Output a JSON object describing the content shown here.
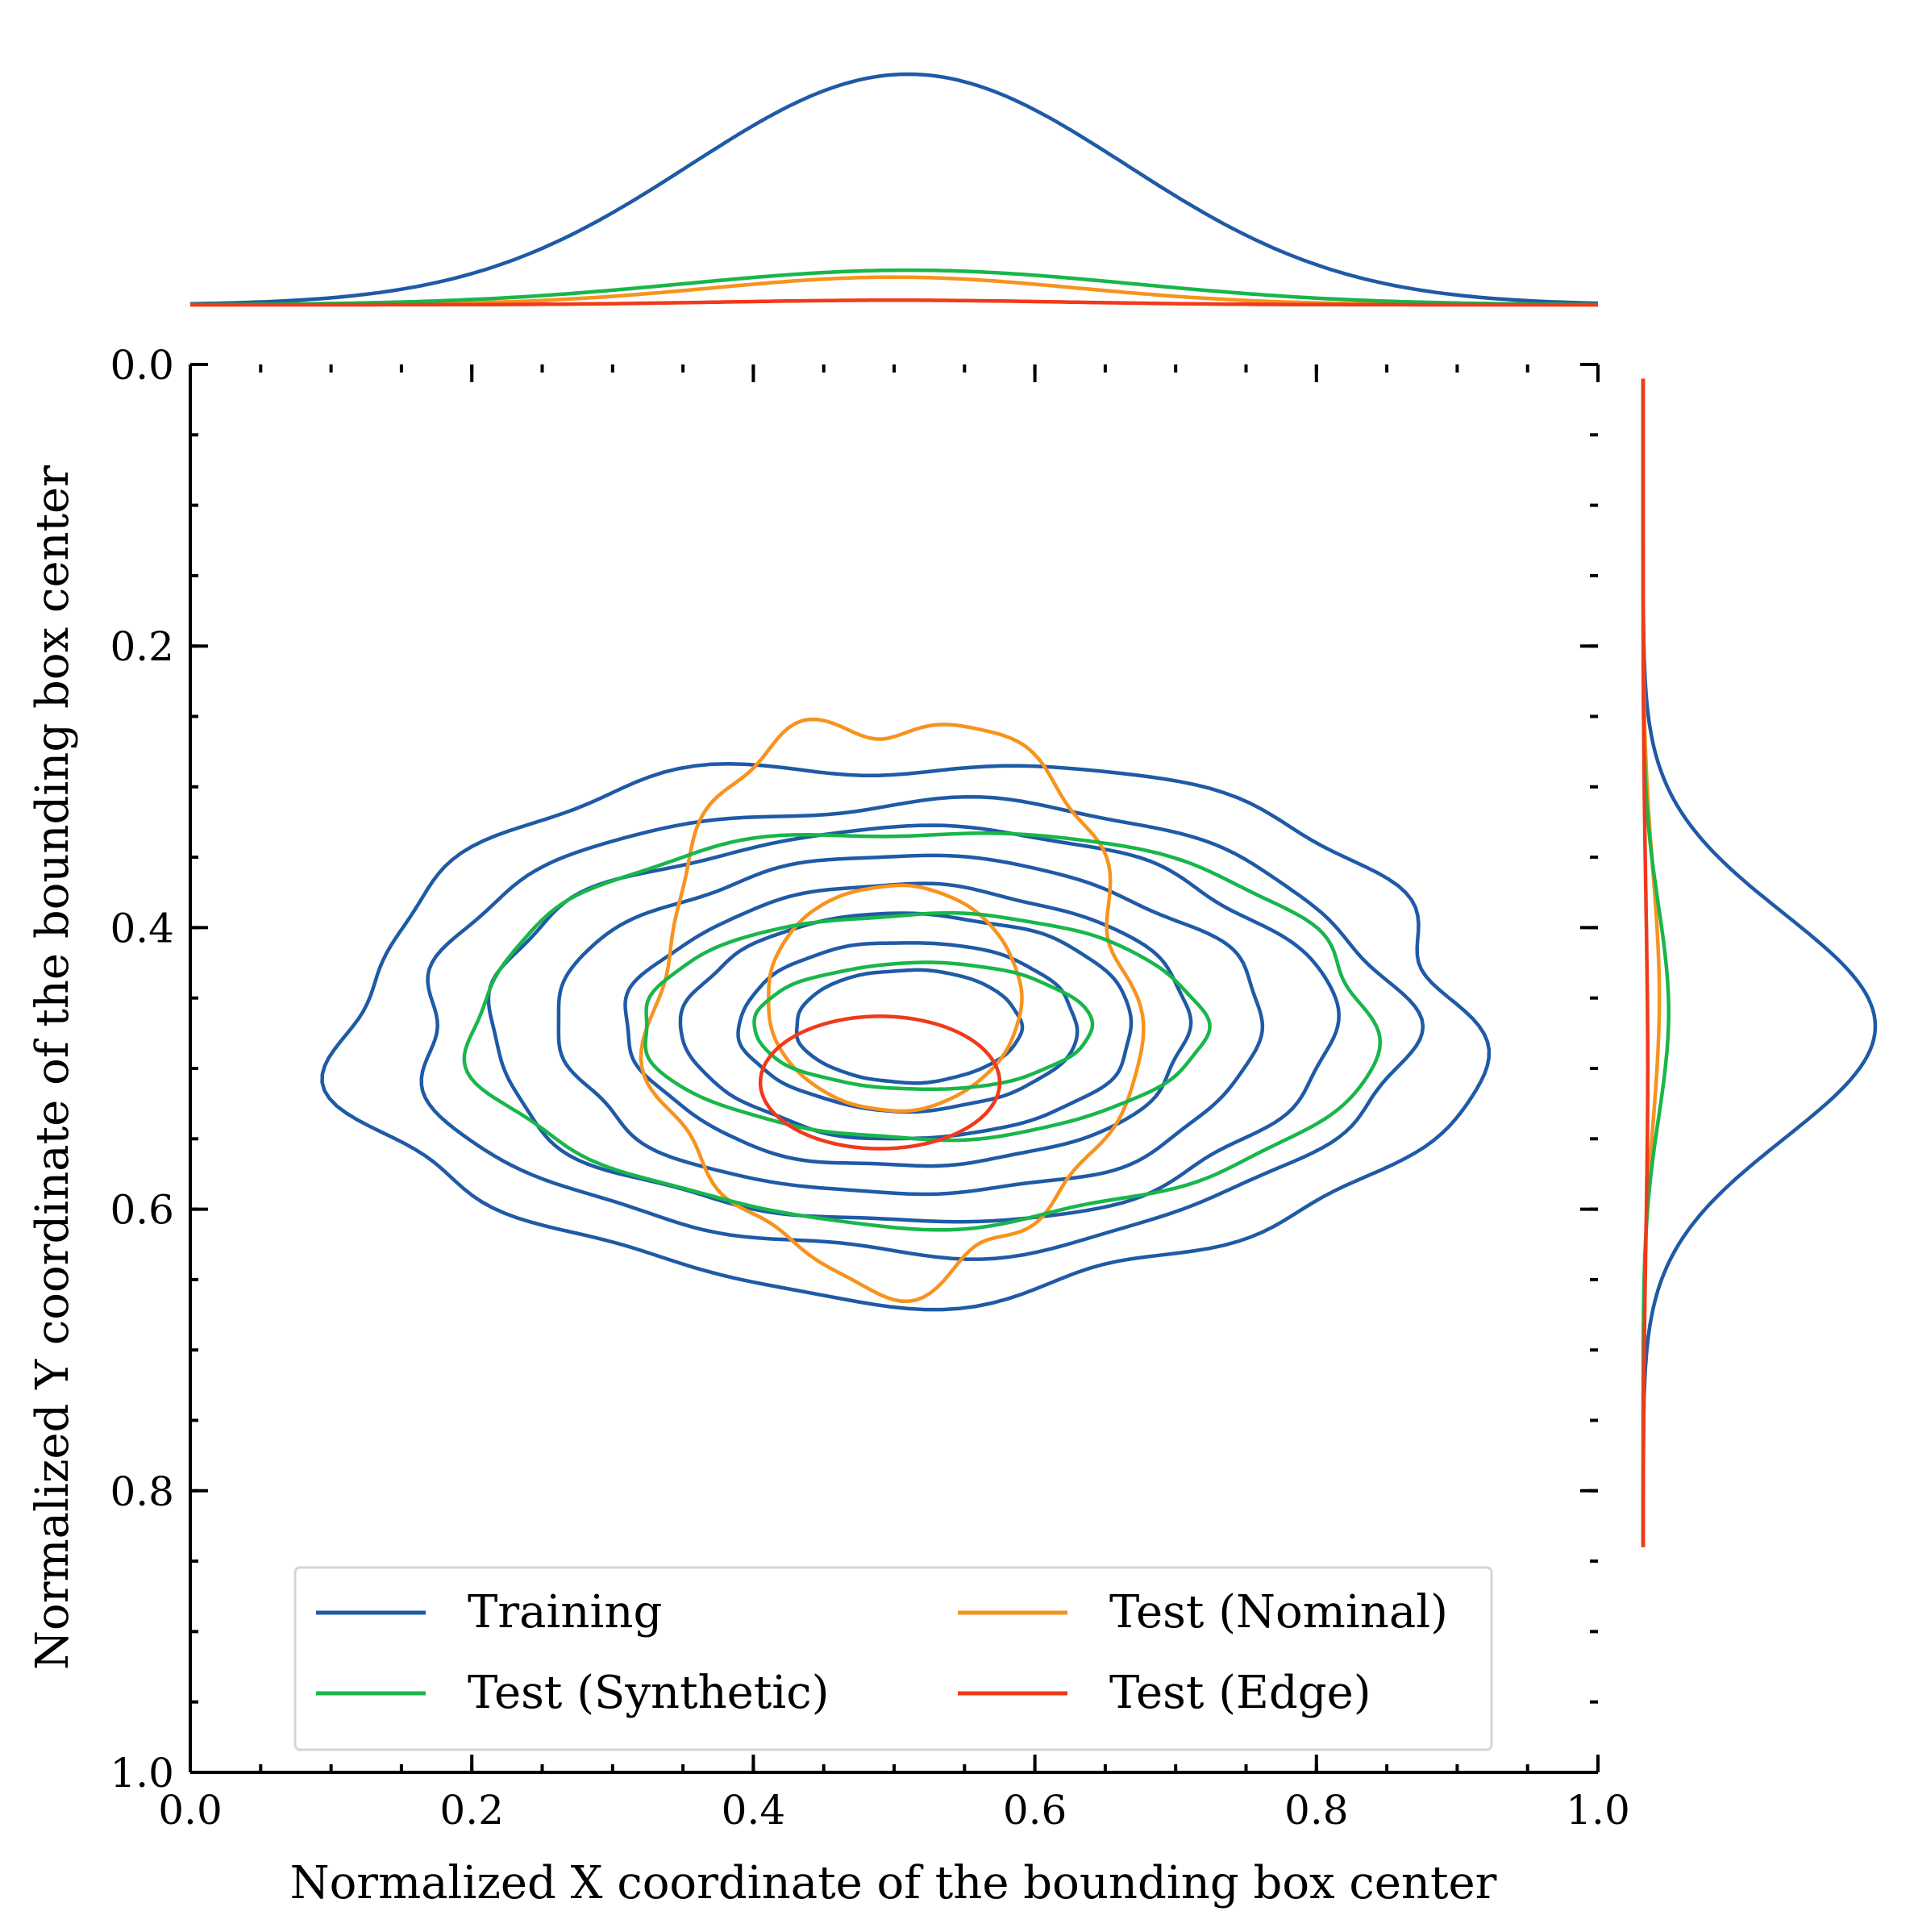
{
  "chart_data": {
    "type": "kde_contour_joint",
    "xlabel": "Normalized X coordinate of the bounding box center",
    "ylabel": "Normalized Y coordinate of the bounding box center",
    "xlim": [
      0.0,
      1.0
    ],
    "ylim": [
      1.0,
      0.0
    ],
    "y_inverted": true,
    "x_ticks": [
      {
        "value": 0.0,
        "label": "0.0"
      },
      {
        "value": 0.2,
        "label": "0.2"
      },
      {
        "value": 0.4,
        "label": "0.4"
      },
      {
        "value": 0.6,
        "label": "0.6"
      },
      {
        "value": 0.8,
        "label": "0.8"
      },
      {
        "value": 1.0,
        "label": "1.0"
      }
    ],
    "y_ticks": [
      {
        "value": 0.0,
        "label": "0.0"
      },
      {
        "value": 0.2,
        "label": "0.2"
      },
      {
        "value": 0.4,
        "label": "0.4"
      },
      {
        "value": 0.6,
        "label": "0.6"
      },
      {
        "value": 0.8,
        "label": "0.8"
      },
      {
        "value": 1.0,
        "label": "1.0"
      }
    ],
    "minor_tick_step": 0.05,
    "legend": {
      "placement": "lower-center",
      "columns": 2,
      "entries": [
        {
          "label": "Training",
          "series": "training"
        },
        {
          "label": "Test (Nominal)",
          "series": "nominal"
        },
        {
          "label": "Test (Synthetic)",
          "series": "synthetic"
        },
        {
          "label": "Test (Edge)",
          "series": "edge"
        }
      ]
    },
    "series": [
      {
        "id": "training",
        "name": "Training",
        "color": "#1f5aa6",
        "center": [
          0.51,
          0.47
        ],
        "contours": [
          {
            "rx": 0.4,
            "ry": 0.19,
            "wobble": 0.035
          },
          {
            "rx": 0.35,
            "ry": 0.16,
            "wobble": 0.025
          },
          {
            "rx": 0.3,
            "ry": 0.14,
            "wobble": 0.02
          },
          {
            "rx": 0.25,
            "ry": 0.12,
            "wobble": 0.018
          },
          {
            "rx": 0.2,
            "ry": 0.1,
            "wobble": 0.015
          },
          {
            "rx": 0.16,
            "ry": 0.08,
            "wobble": 0.012
          },
          {
            "rx": 0.12,
            "ry": 0.06,
            "wobble": 0.01
          },
          {
            "rx": 0.08,
            "ry": 0.04,
            "wobble": 0.008
          }
        ],
        "x_marginal": {
          "mean": 0.51,
          "sd": 0.155,
          "peak": 1.0
        },
        "y_marginal": {
          "mean": 0.47,
          "sd": 0.08,
          "peak": 1.0
        }
      },
      {
        "id": "nominal",
        "name": "Test (Nominal)",
        "color": "#f7931e",
        "center": [
          0.5,
          0.45
        ],
        "contours": [
          {
            "rx": 0.17,
            "ry": 0.2,
            "wobble": 0.045
          },
          {
            "rx": 0.09,
            "ry": 0.08,
            "wobble": 0.005
          }
        ],
        "x_marginal": {
          "mean": 0.5,
          "sd": 0.13,
          "peak": 0.12
        },
        "y_marginal": {
          "mean": 0.45,
          "sd": 0.09,
          "peak": 0.07
        }
      },
      {
        "id": "synthetic",
        "name": "Test (Synthetic)",
        "color": "#19b64a",
        "center": [
          0.52,
          0.47
        ],
        "contours": [
          {
            "rx": 0.32,
            "ry": 0.14,
            "wobble": 0.02
          },
          {
            "rx": 0.2,
            "ry": 0.08,
            "wobble": 0.012
          },
          {
            "rx": 0.12,
            "ry": 0.045,
            "wobble": 0.008
          }
        ],
        "x_marginal": {
          "mean": 0.51,
          "sd": 0.16,
          "peak": 0.15
        },
        "y_marginal": {
          "mean": 0.46,
          "sd": 0.075,
          "peak": 0.11
        }
      },
      {
        "id": "edge",
        "name": "Test (Edge)",
        "color": "#f03a1a",
        "center": [
          0.49,
          0.51
        ],
        "contours": [
          {
            "rx": 0.085,
            "ry": 0.047,
            "wobble": 0.0
          }
        ],
        "x_marginal": {
          "mean": 0.5,
          "sd": 0.12,
          "peak": 0.02
        },
        "y_marginal": {
          "mean": 0.5,
          "sd": 0.12,
          "peak": 0.02
        }
      }
    ]
  }
}
